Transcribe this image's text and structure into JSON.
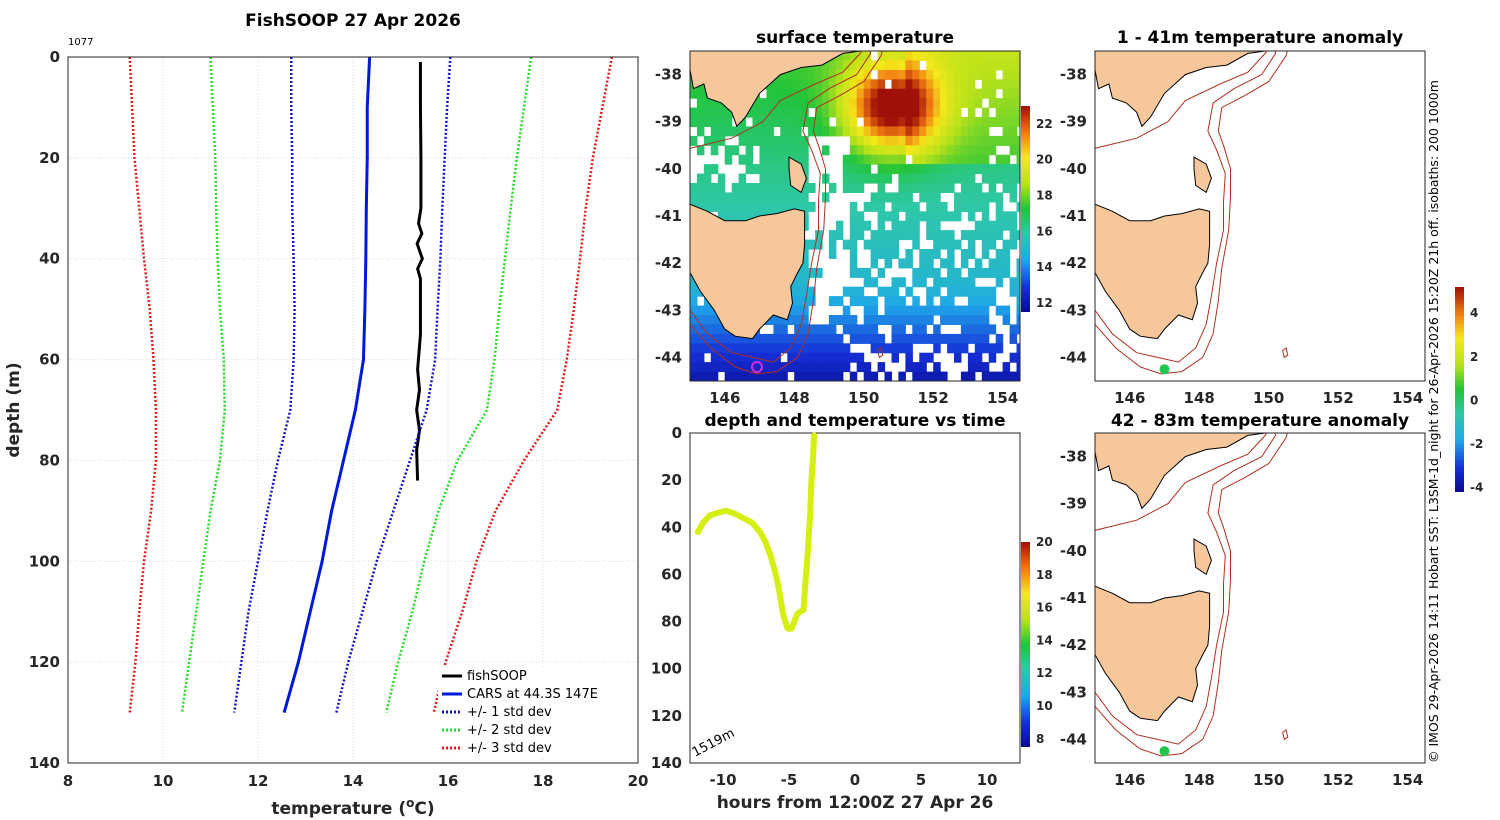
{
  "figure": {
    "side_text": "© IMOS 29-Apr-2026 14:11 Hobart SST: L3SM-1d_night for 26-Apr-2026 15:20Z 21h off. isobaths: 200  1000m"
  },
  "colors": {
    "land": "#f7c79c",
    "coast": "#000000",
    "isobath": "#b03020",
    "fishsoop": "#000000",
    "cars": "#0018d8",
    "std1": "#1414c8",
    "std2": "#22dd22",
    "std3": "#e41a1a",
    "track": "#d4ef10"
  },
  "chart_data": [
    {
      "id": "profile",
      "type": "line",
      "title": "FishSOOP 27 Apr 2026",
      "corner_label": "1077",
      "xlabel": "temperature (",
      "xlabel_sup": "o",
      "xlabel_tail": "C)",
      "ylabel": "depth (m)",
      "xlim": [
        8,
        20
      ],
      "ylim": [
        140,
        0
      ],
      "xticks": [
        8,
        10,
        12,
        14,
        16,
        18,
        20
      ],
      "yticks": [
        0,
        20,
        40,
        60,
        80,
        100,
        120,
        140
      ],
      "grid": true,
      "legend_position": "bottom-right",
      "depths": [
        0,
        10,
        20,
        30,
        40,
        50,
        60,
        70,
        80,
        90,
        100,
        110,
        120,
        130
      ],
      "series": [
        {
          "name": "fishSOOP",
          "color": "#000000",
          "style": "solid",
          "width": 3,
          "points": [
            [
              15.42,
              1
            ],
            [
              15.42,
              10
            ],
            [
              15.43,
              20
            ],
            [
              15.43,
              30
            ],
            [
              15.38,
              33
            ],
            [
              15.45,
              35
            ],
            [
              15.35,
              37
            ],
            [
              15.46,
              40
            ],
            [
              15.36,
              42
            ],
            [
              15.42,
              44
            ],
            [
              15.42,
              55
            ],
            [
              15.36,
              62
            ],
            [
              15.4,
              66
            ],
            [
              15.34,
              70
            ],
            [
              15.4,
              74
            ],
            [
              15.34,
              78
            ],
            [
              15.36,
              84
            ]
          ]
        },
        {
          "name": "CARS at 44.3S 147E",
          "color": "#0018d8",
          "style": "solid",
          "width": 3,
          "values": [
            14.35,
            14.3,
            14.3,
            14.28,
            14.27,
            14.25,
            14.22,
            14.05,
            13.8,
            13.55,
            13.35,
            13.1,
            12.85,
            12.55
          ]
        },
        {
          "name": "+/- 1 std dev",
          "color": "#1414c8",
          "style": "dotted",
          "width": 2.5,
          "values": [
            12.7,
            12.7,
            12.72,
            12.72,
            12.75,
            12.77,
            12.75,
            12.68,
            12.42,
            12.2,
            12.0,
            11.8,
            11.65,
            11.5
          ],
          "upper": [
            16.05,
            15.98,
            15.93,
            15.88,
            15.84,
            15.78,
            15.73,
            15.55,
            15.2,
            14.85,
            14.5,
            14.2,
            13.9,
            13.65
          ]
        },
        {
          "name": "+/- 2 std dev",
          "color": "#22dd22",
          "style": "dotted",
          "width": 2.5,
          "values": [
            11.0,
            11.05,
            11.1,
            11.12,
            11.15,
            11.2,
            11.28,
            11.3,
            11.2,
            11.0,
            10.85,
            10.7,
            10.55,
            10.4
          ],
          "upper": [
            17.75,
            17.6,
            17.45,
            17.32,
            17.2,
            17.08,
            16.98,
            16.82,
            16.2,
            15.8,
            15.5,
            15.25,
            14.95,
            14.7
          ]
        },
        {
          "name": "+/- 3 std dev",
          "color": "#e41a1a",
          "style": "dotted",
          "width": 2.5,
          "values": [
            9.3,
            9.35,
            9.4,
            9.5,
            9.6,
            9.72,
            9.8,
            9.85,
            9.85,
            9.75,
            9.6,
            9.5,
            9.42,
            9.3
          ],
          "upper": [
            19.45,
            19.25,
            19.05,
            18.9,
            18.78,
            18.65,
            18.5,
            18.3,
            17.6,
            17.0,
            16.6,
            16.3,
            15.95,
            15.7
          ]
        }
      ]
    },
    {
      "id": "sst",
      "type": "heatmap",
      "title": "surface temperature",
      "xlim": [
        145,
        154.5
      ],
      "ylim": [
        -44.5,
        -37.5
      ],
      "xticks": [
        146,
        148,
        150,
        152,
        154
      ],
      "yticks": [
        -38,
        -39,
        -40,
        -41,
        -42,
        -43,
        -44
      ],
      "colorbar": {
        "min": 11.5,
        "max": 23,
        "ticks": [
          12,
          14,
          16,
          18,
          20,
          22
        ]
      }
    },
    {
      "id": "track",
      "type": "line",
      "title": "depth and temperature vs time",
      "xlabel": "hours from 12:00Z 27 Apr 26",
      "annotation": "1519m",
      "xlim": [
        -12.5,
        12.5
      ],
      "ylim": [
        140,
        0
      ],
      "xticks": [
        -10,
        -5,
        0,
        5,
        10
      ],
      "yticks": [
        0,
        20,
        40,
        60,
        80,
        100,
        120,
        140
      ],
      "colorbar": {
        "min": 7.5,
        "max": 20,
        "ticks": [
          8,
          10,
          12,
          14,
          16,
          18,
          20
        ]
      },
      "points": [
        [
          -11.9,
          42
        ],
        [
          -11.5,
          38
        ],
        [
          -11,
          35
        ],
        [
          -10.5,
          34
        ],
        [
          -9.8,
          33
        ],
        [
          -9.2,
          34
        ],
        [
          -8.5,
          36
        ],
        [
          -7.8,
          38
        ],
        [
          -7.2,
          42
        ],
        [
          -6.8,
          46
        ],
        [
          -6.4,
          52
        ],
        [
          -6.1,
          58
        ],
        [
          -5.8,
          65
        ],
        [
          -5.6,
          72
        ],
        [
          -5.4,
          78
        ],
        [
          -5.1,
          83
        ],
        [
          -4.8,
          83
        ],
        [
          -4.6,
          80
        ],
        [
          -4.4,
          77
        ],
        [
          -4.2,
          76
        ],
        [
          -3.9,
          75
        ],
        [
          -3.8,
          67
        ],
        [
          -3.6,
          52
        ],
        [
          -3.4,
          35
        ],
        [
          -3.3,
          20
        ],
        [
          -3.2,
          12
        ],
        [
          -3.1,
          1
        ]
      ]
    },
    {
      "id": "anom1",
      "type": "heatmap",
      "title": "1 - 41m temperature anomaly",
      "xlim": [
        145,
        154.5
      ],
      "ylim": [
        -44.5,
        -37.5
      ],
      "xticks": [
        146,
        148,
        150,
        152,
        154
      ],
      "yticks": [
        -38,
        -39,
        -40,
        -41,
        -42,
        -43,
        -44
      ],
      "colorbar": {
        "min": -4.2,
        "max": 5.2,
        "ticks": [
          -4,
          -2,
          0,
          2,
          4
        ]
      },
      "marker": {
        "lon": 147.0,
        "lat": -44.25,
        "value": 0.3
      }
    },
    {
      "id": "anom2",
      "type": "heatmap",
      "title": "42 - 83m temperature anomaly",
      "xlim": [
        145,
        154.5
      ],
      "ylim": [
        -44.5,
        -37.5
      ],
      "xticks": [
        146,
        148,
        150,
        152,
        154
      ],
      "yticks": [
        -38,
        -39,
        -40,
        -41,
        -42,
        -43,
        -44
      ],
      "marker": {
        "lon": 147.0,
        "lat": -44.25,
        "value": 0.3
      }
    }
  ]
}
